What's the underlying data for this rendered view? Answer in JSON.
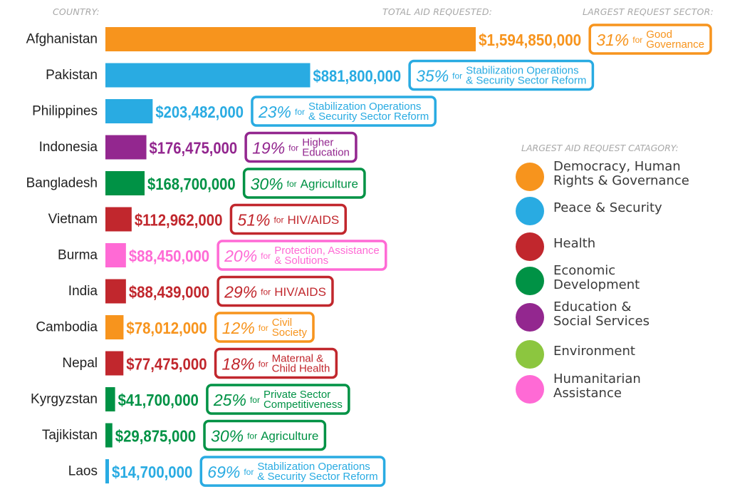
{
  "headers": {
    "country": "COUNTRY:",
    "total": "TOTAL AID REQUESTED:",
    "sector": "LARGEST REQUEST SECTOR:"
  },
  "legend": {
    "title": "LARGEST AID REQUEST CATAGORY:",
    "items": [
      {
        "label": "Democracy, Human\nRights & Governance",
        "color": "#f7941d"
      },
      {
        "label": "Peace & Security",
        "color": "#29abe2"
      },
      {
        "label": "Health",
        "color": "#c1272d"
      },
      {
        "label": "Economic\nDevelopment",
        "color": "#009245"
      },
      {
        "label": "Education &\nSocial Services",
        "color": "#93278f"
      },
      {
        "label": "Environment",
        "color": "#8cc63f"
      },
      {
        "label": "Humanitarian\nAssistance",
        "color": "#ff6ad5"
      }
    ]
  },
  "chart_data": {
    "type": "bar",
    "orientation": "horizontal",
    "title": "",
    "xlabel": "",
    "ylabel": "",
    "grid": false,
    "legend_position": "right",
    "categories": [
      "Afghanistan",
      "Pakistan",
      "Philippines",
      "Indonesia",
      "Bangladesh",
      "Vietnam",
      "Burma",
      "India",
      "Cambodia",
      "Nepal",
      "Kyrgyzstan",
      "Tajikistan",
      "Laos"
    ],
    "values": [
      1594850000,
      881800000,
      203482000,
      176475000,
      168700000,
      112962000,
      88450000,
      88439000,
      78012000,
      77475000,
      41700000,
      29875000,
      14700000
    ],
    "value_labels": [
      "$1,594,850,000",
      "$881,800,000",
      "$203,482,000",
      "$176,475,000",
      "$168,700,000",
      "$112,962,000",
      "$88,450,000",
      "$88,439,000",
      "$78,012,000",
      "$77,475,000",
      "$41,700,000",
      "$29,875,000",
      "$14,700,000"
    ],
    "bar_categories": [
      "Democracy, Human Rights & Governance",
      "Peace & Security",
      "Peace & Security",
      "Education & Social Services",
      "Economic Development",
      "Health",
      "Humanitarian Assistance",
      "Health",
      "Democracy, Human Rights & Governance",
      "Health",
      "Economic Development",
      "Economic Development",
      "Peace & Security"
    ],
    "bar_colors": [
      "#f7941d",
      "#29abe2",
      "#29abe2",
      "#93278f",
      "#009245",
      "#c1272d",
      "#ff6ad5",
      "#c1272d",
      "#f7941d",
      "#c1272d",
      "#009245",
      "#009245",
      "#29abe2"
    ],
    "sectors": [
      {
        "pct": "31%",
        "for": "for",
        "text": [
          "Good",
          "Governance"
        ]
      },
      {
        "pct": "35%",
        "for": "for",
        "text": [
          "Stabilization Operations",
          "& Security Sector Reform"
        ]
      },
      {
        "pct": "23%",
        "for": "for",
        "text": [
          "Stabilization Operations",
          "& Security Sector Reform"
        ]
      },
      {
        "pct": "19%",
        "for": "for",
        "text": [
          "Higher",
          "Education"
        ]
      },
      {
        "pct": "30%",
        "for": "for",
        "text": [
          "Agriculture"
        ]
      },
      {
        "pct": "51%",
        "for": "for",
        "text": [
          "HIV/AIDS"
        ]
      },
      {
        "pct": "20%",
        "for": "for",
        "text": [
          "Protection, Assistance",
          "& Solutions"
        ]
      },
      {
        "pct": "29%",
        "for": "for",
        "text": [
          "HIV/AIDS"
        ]
      },
      {
        "pct": "12%",
        "for": "for",
        "text": [
          "Civil",
          "Society"
        ]
      },
      {
        "pct": "18%",
        "for": "for",
        "text": [
          "Maternal &",
          "Child Health"
        ]
      },
      {
        "pct": "25%",
        "for": "for",
        "text": [
          "Private Sector",
          "Competitiveness"
        ]
      },
      {
        "pct": "30%",
        "for": "for",
        "text": [
          "Agriculture"
        ]
      },
      {
        "pct": "69%",
        "for": "for",
        "text": [
          "Stabilization Operations",
          "& Security Sector Reform"
        ]
      }
    ]
  }
}
